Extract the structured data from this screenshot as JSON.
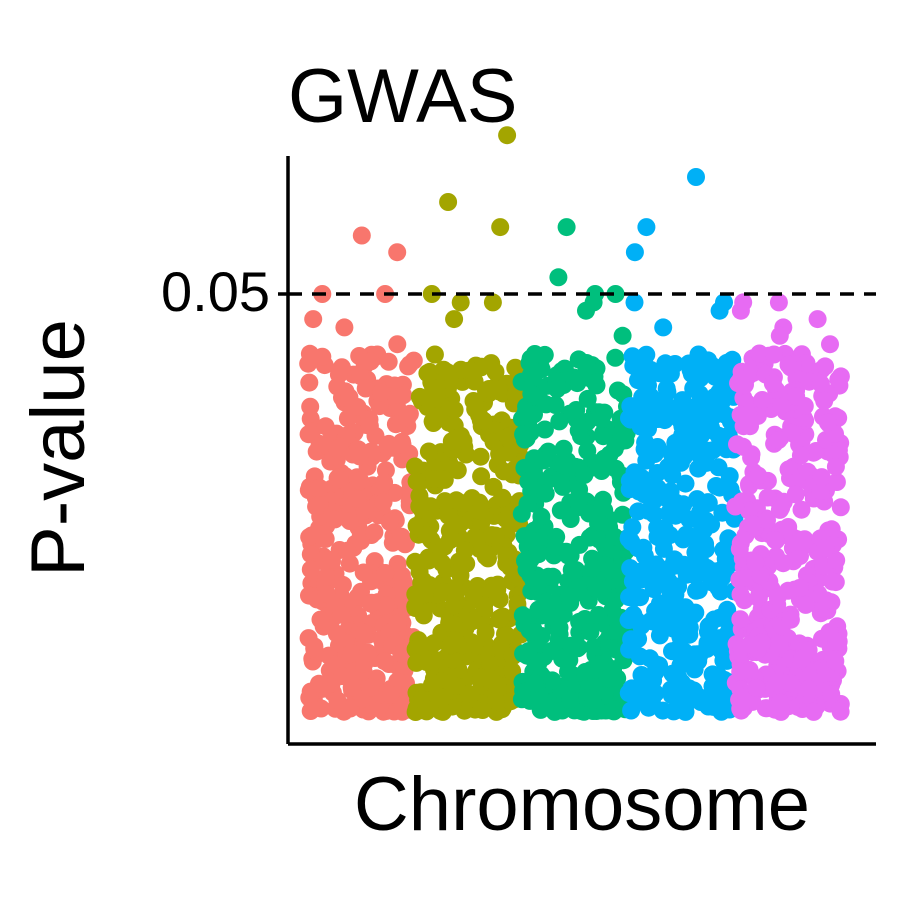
{
  "chart_data": {
    "type": "scatter",
    "title": "GWAS",
    "xlabel": "Chromosome",
    "ylabel": "P-value",
    "ylim": [
      0,
      0.095
    ],
    "yticks": [
      {
        "value": 0.05,
        "label": "0.05"
      }
    ],
    "threshold": {
      "value": 0.05,
      "style": "dashed"
    },
    "grid": false,
    "legend": "none",
    "series": [
      {
        "color": "#F8766D",
        "points_per_group": 380,
        "top_points": [
          0.057,
          0.055,
          0.05,
          0.05,
          0.047,
          0.046,
          0.044
        ]
      },
      {
        "color": "#A3A500",
        "points_per_group": 380,
        "top_points": [
          0.069,
          0.061,
          0.058,
          0.05,
          0.049,
          0.049,
          0.047
        ]
      },
      {
        "color": "#00BF7D",
        "points_per_group": 380,
        "top_points": [
          0.058,
          0.052,
          0.05,
          0.05,
          0.049,
          0.048,
          0.045
        ]
      },
      {
        "color": "#00B0F6",
        "points_per_group": 380,
        "top_points": [
          0.064,
          0.058,
          0.055,
          0.049,
          0.049,
          0.048,
          0.046
        ]
      },
      {
        "color": "#E76BF3",
        "points_per_group": 380,
        "top_points": [
          0.049,
          0.049,
          0.048,
          0.047,
          0.046,
          0.045,
          0.044
        ]
      }
    ]
  }
}
